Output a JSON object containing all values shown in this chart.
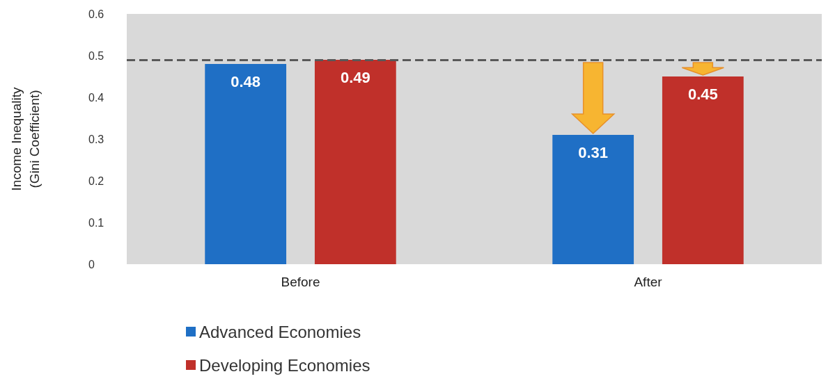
{
  "chart_data": {
    "type": "bar",
    "ylabel": "Income Inequality\n(Gini Coefficient)",
    "categories": [
      "Before",
      "After"
    ],
    "series": [
      {
        "name": "Advanced Economies",
        "color": "#1f6fc5",
        "values": [
          0.48,
          0.31
        ]
      },
      {
        "name": "Developing Economies",
        "color": "#c0302a",
        "values": [
          0.49,
          0.45
        ]
      }
    ],
    "ylim": [
      0,
      0.6
    ],
    "yticks": [
      0,
      0.1,
      0.2,
      0.3,
      0.4,
      0.5,
      0.6
    ],
    "data_labels": true,
    "grid": false,
    "legend": "bottom left",
    "ref_lines": [
      {
        "axis": "y",
        "value": 0.49,
        "color": "#595959",
        "line_style": "dashed"
      }
    ]
  }
}
